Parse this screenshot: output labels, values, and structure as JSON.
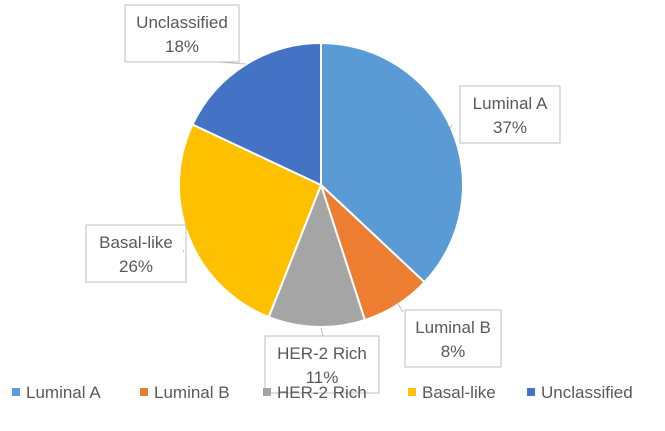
{
  "chart_data": {
    "type": "pie",
    "title": "",
    "categories": [
      "Luminal A",
      "Luminal B",
      "HER-2 Rich",
      "Basal-like",
      "Unclassified"
    ],
    "values": [
      37,
      8,
      11,
      26,
      18
    ],
    "labels": [
      "37%",
      "8%",
      "11%",
      "26%",
      "18%"
    ],
    "colors": [
      "#5B9BD5",
      "#ED7D31",
      "#A5A5A5",
      "#FFC000",
      "#4472C4"
    ],
    "legend": {
      "position": "bottom",
      "entries": [
        "Luminal A",
        "Luminal B",
        "HER-2 Rich",
        "Basal-like",
        "Unclassified"
      ]
    },
    "data_labels": "callouts with category name and percentage"
  }
}
